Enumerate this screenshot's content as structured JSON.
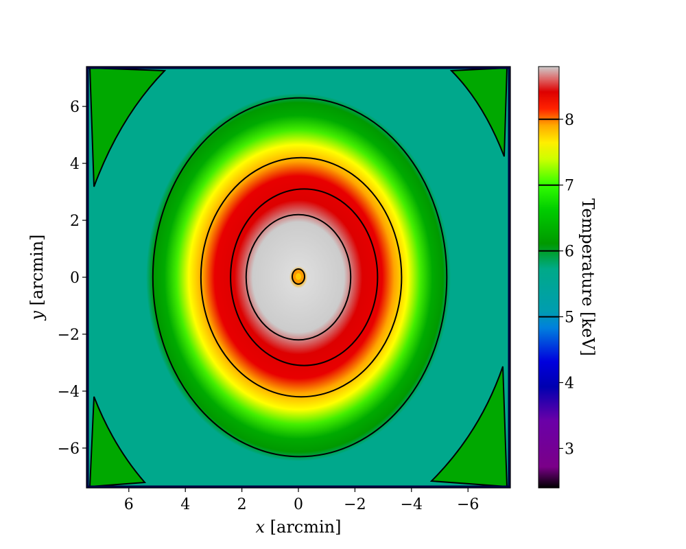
{
  "chart_data": {
    "type": "heatmap",
    "title": "",
    "x_axis": {
      "label_var": "x",
      "label_unit": " [arcmin]",
      "ticks": [
        6,
        4,
        2,
        0,
        -2,
        -4,
        -6
      ],
      "tick_labels": [
        "6",
        "4",
        "2",
        "0",
        "−2",
        "−4",
        "−6"
      ],
      "range": [
        7.5,
        -7.5
      ],
      "inverted": true
    },
    "y_axis": {
      "label_var": "y",
      "label_unit": " [arcmin]",
      "ticks": [
        6,
        4,
        2,
        0,
        -2,
        -4,
        -6
      ],
      "tick_labels": [
        "6",
        "4",
        "2",
        "0",
        "−2",
        "−4",
        "−6"
      ],
      "range": [
        -7.4,
        7.4
      ]
    },
    "colorbar": {
      "label": "Temperature [keV]",
      "range": [
        2.4,
        8.8
      ],
      "ticks": [
        3,
        4,
        5,
        6,
        7,
        8
      ],
      "tick_labels": [
        "3",
        "4",
        "5",
        "6",
        "7",
        "8"
      ],
      "contour_levels": [
        5,
        6,
        7,
        8
      ],
      "colormap": "nipy_spectral"
    },
    "field": {
      "center_keV": 7.5,
      "peak_keV": 8.8,
      "background_keV": 4.9
    },
    "contours": [
      {
        "level": 8,
        "cx": 0.0,
        "cy": 0.0,
        "rx": 1.85,
        "ry": 2.2
      },
      {
        "level": 7,
        "cx": -0.2,
        "cy": 0.0,
        "rx": 2.6,
        "ry": 3.1
      },
      {
        "level": 6,
        "cx": -0.1,
        "cy": 0.0,
        "rx": 3.55,
        "ry": 4.2
      },
      {
        "level": 5,
        "cx": -0.05,
        "cy": 0.0,
        "rx": 5.2,
        "ry": 6.3
      }
    ],
    "grid": false,
    "legend": "none"
  }
}
